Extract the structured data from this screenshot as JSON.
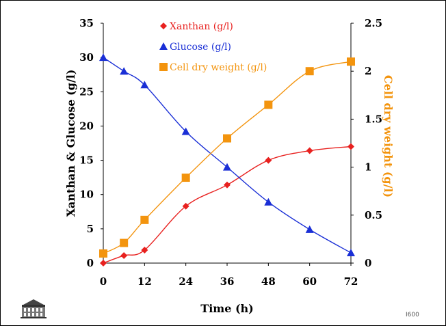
{
  "footer": {
    "code": "I600"
  },
  "colors": {
    "xanthan": "#e8211f",
    "glucose": "#1a2fd6",
    "cdw": "#f3940e"
  },
  "chart_data": {
    "type": "scatter",
    "x": [
      0,
      6,
      12,
      24,
      36,
      48,
      60,
      72
    ],
    "x_ticks": [
      "0",
      "12",
      "24",
      "36",
      "48",
      "60",
      "72"
    ],
    "xlabel": "Time (h)",
    "ylabel_left": "Xanthan & Glucose (g/l)",
    "ylabel_right": "Cell dry weight (g/l)",
    "ylim_left": [
      0,
      35
    ],
    "ylim_right": [
      0,
      2.5
    ],
    "y_ticks_left": [
      "0",
      "5",
      "10",
      "15",
      "20",
      "25",
      "30",
      "35"
    ],
    "y_ticks_right": [
      "0",
      "0.5",
      "1",
      "1.5",
      "2",
      "2.5"
    ],
    "legend_position": "top-center",
    "series": [
      {
        "name": "Xanthan (g/l)",
        "axis": "left",
        "marker": "diamond",
        "color": "#e8211f",
        "values": [
          0,
          1.1,
          1.9,
          8.3,
          11.4,
          15.0,
          16.4,
          17.0
        ]
      },
      {
        "name": "Glucose (g/l)",
        "axis": "left",
        "marker": "triangle",
        "color": "#1a2fd6",
        "values": [
          30.0,
          28.0,
          26.0,
          19.2,
          14.0,
          8.9,
          4.9,
          1.5
        ]
      },
      {
        "name": "Cell dry weight (g/l)",
        "axis": "right",
        "marker": "square",
        "color": "#f3940e",
        "values": [
          0.1,
          0.21,
          0.45,
          0.89,
          1.3,
          1.65,
          2.0,
          2.1
        ]
      }
    ]
  }
}
